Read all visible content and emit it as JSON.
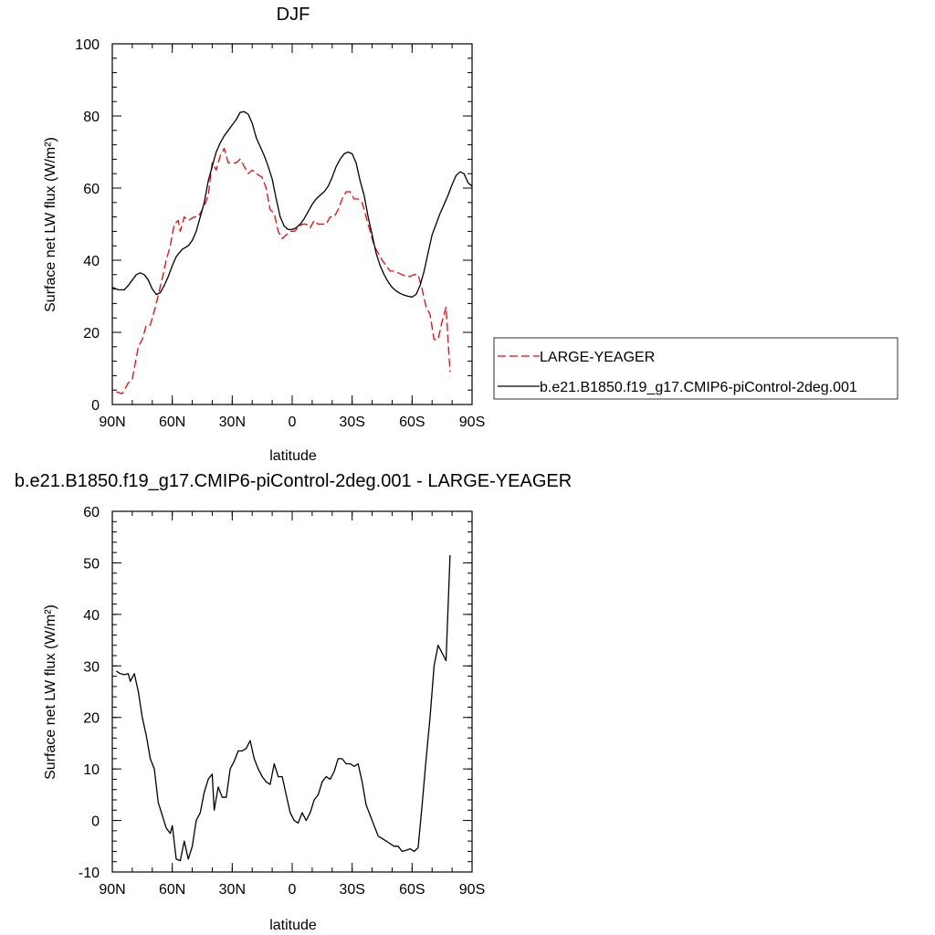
{
  "chart_data": [
    {
      "type": "line",
      "title": "DJF",
      "xlabel": "latitude",
      "ylabel": "Surface net LW flux (W/m²)",
      "xlim": [
        90,
        -90
      ],
      "ylim": [
        0,
        100
      ],
      "x_ticks": [
        {
          "v": 90,
          "label": "90N"
        },
        {
          "v": 60,
          "label": "60N"
        },
        {
          "v": 30,
          "label": "30N"
        },
        {
          "v": 0,
          "label": "0"
        },
        {
          "v": -30,
          "label": "30S"
        },
        {
          "v": -60,
          "label": "60S"
        },
        {
          "v": -90,
          "label": "90S"
        }
      ],
      "y_ticks": [
        0,
        20,
        40,
        60,
        80,
        100
      ],
      "legend": "right-bottom",
      "series": [
        {
          "name": "LARGE-YEAGER",
          "color": "#ff0000",
          "dash": "dashed",
          "points": [
            [
              88,
              3.5
            ],
            [
              85,
              3
            ],
            [
              82,
              6
            ],
            [
              80,
              7
            ],
            [
              77,
              16
            ],
            [
              75,
              18
            ],
            [
              73,
              22
            ],
            [
              71,
              22
            ],
            [
              68,
              28
            ],
            [
              65,
              35
            ],
            [
              63,
              40
            ],
            [
              61,
              44
            ],
            [
              59,
              50
            ],
            [
              57,
              51
            ],
            [
              56,
              48
            ],
            [
              54,
              52
            ],
            [
              52,
              51
            ],
            [
              49,
              52
            ],
            [
              47,
              52
            ],
            [
              44,
              55
            ],
            [
              42,
              58
            ],
            [
              40,
              67
            ],
            [
              38,
              65
            ],
            [
              36,
              69
            ],
            [
              34,
              71
            ],
            [
              32,
              67
            ],
            [
              30,
              67
            ],
            [
              28,
              67
            ],
            [
              26,
              68
            ],
            [
              24,
              66
            ],
            [
              22,
              64
            ],
            [
              20,
              65
            ],
            [
              18,
              64
            ],
            [
              15,
              63
            ],
            [
              13,
              60
            ],
            [
              11,
              54
            ],
            [
              9,
              53
            ],
            [
              7,
              48
            ],
            [
              5,
              46
            ],
            [
              3,
              47
            ],
            [
              1,
              48
            ],
            [
              -1,
              48
            ],
            [
              -3,
              49
            ],
            [
              -5,
              50
            ],
            [
              -7,
              50
            ],
            [
              -9,
              49
            ],
            [
              -11,
              51
            ],
            [
              -13,
              50
            ],
            [
              -15,
              50
            ],
            [
              -17,
              50
            ],
            [
              -19,
              52
            ],
            [
              -21,
              52
            ],
            [
              -23,
              54
            ],
            [
              -25,
              57
            ],
            [
              -27,
              59
            ],
            [
              -29,
              59
            ],
            [
              -31,
              57
            ],
            [
              -33,
              57
            ],
            [
              -35,
              56
            ],
            [
              -37,
              52
            ],
            [
              -39,
              48
            ],
            [
              -41,
              44
            ],
            [
              -43,
              42
            ],
            [
              -45,
              40
            ],
            [
              -47,
              38.5
            ],
            [
              -49,
              37
            ],
            [
              -51,
              37
            ],
            [
              -53,
              36.5
            ],
            [
              -55,
              36
            ],
            [
              -57,
              35.5
            ],
            [
              -59,
              35.5
            ],
            [
              -61,
              36
            ],
            [
              -63,
              36
            ],
            [
              -65,
              32
            ],
            [
              -67,
              27
            ],
            [
              -69,
              25
            ],
            [
              -71,
              18
            ],
            [
              -73,
              18
            ],
            [
              -75,
              23
            ],
            [
              -77,
              27
            ],
            [
              -79,
              9
            ]
          ]
        },
        {
          "name": "b.e21.B1850.f19_g17.CMIP6-piControl-2deg.001",
          "color": "#000000",
          "dash": "solid",
          "points": [
            [
              90,
              32.5
            ],
            [
              87,
              31.8
            ],
            [
              84,
              31.8
            ],
            [
              82,
              33
            ],
            [
              80,
              34.5
            ],
            [
              78,
              36
            ],
            [
              76,
              36.5
            ],
            [
              74,
              36
            ],
            [
              72,
              34.5
            ],
            [
              70,
              32
            ],
            [
              68,
              30.5
            ],
            [
              66,
              31
            ],
            [
              64,
              33
            ],
            [
              62,
              35.5
            ],
            [
              60,
              38.5
            ],
            [
              58,
              41
            ],
            [
              55,
              43
            ],
            [
              52,
              44
            ],
            [
              50,
              45.5
            ],
            [
              48,
              48
            ],
            [
              46,
              52
            ],
            [
              44,
              56
            ],
            [
              42,
              62
            ],
            [
              40,
              66
            ],
            [
              38,
              70
            ],
            [
              36,
              72.5
            ],
            [
              34,
              74.5
            ],
            [
              32,
              76
            ],
            [
              30,
              77.5
            ],
            [
              28,
              79
            ],
            [
              26,
              81
            ],
            [
              24,
              81.2
            ],
            [
              22,
              80.5
            ],
            [
              20,
              78
            ],
            [
              18,
              74
            ],
            [
              16,
              71.5
            ],
            [
              14,
              69
            ],
            [
              12,
              66
            ],
            [
              10,
              62.5
            ],
            [
              8,
              57
            ],
            [
              6,
              52
            ],
            [
              4,
              49.5
            ],
            [
              2,
              48.5
            ],
            [
              0,
              48.5
            ],
            [
              -2,
              49
            ],
            [
              -4,
              50
            ],
            [
              -6,
              51.5
            ],
            [
              -8,
              53.5
            ],
            [
              -10,
              55.5
            ],
            [
              -12,
              57
            ],
            [
              -14,
              58
            ],
            [
              -16,
              59
            ],
            [
              -18,
              60.5
            ],
            [
              -20,
              63
            ],
            [
              -22,
              66
            ],
            [
              -24,
              68
            ],
            [
              -26,
              69.5
            ],
            [
              -28,
              70
            ],
            [
              -30,
              69.5
            ],
            [
              -32,
              67
            ],
            [
              -34,
              62
            ],
            [
              -36,
              58
            ],
            [
              -38,
              52
            ],
            [
              -40,
              47
            ],
            [
              -42,
              42
            ],
            [
              -44,
              38.5
            ],
            [
              -46,
              36
            ],
            [
              -48,
              34
            ],
            [
              -50,
              32.5
            ],
            [
              -52,
              31.5
            ],
            [
              -54,
              30.8
            ],
            [
              -56,
              30.3
            ],
            [
              -58,
              30
            ],
            [
              -60,
              29.8
            ],
            [
              -62,
              30.5
            ],
            [
              -64,
              33
            ],
            [
              -66,
              37
            ],
            [
              -68,
              42
            ],
            [
              -70,
              47
            ],
            [
              -72,
              50
            ],
            [
              -74,
              53
            ],
            [
              -76,
              55.5
            ],
            [
              -78,
              58
            ],
            [
              -80,
              61
            ],
            [
              -82,
              63.5
            ],
            [
              -84,
              64.5
            ],
            [
              -86,
              64
            ],
            [
              -88,
              61.5
            ],
            [
              -90,
              60.5
            ]
          ]
        }
      ]
    },
    {
      "type": "line",
      "title": "b.e21.B1850.f19_g17.CMIP6-piControl-2deg.001 - LARGE-YEAGER",
      "xlabel": "latitude",
      "ylabel": "Surface net LW flux (W/m²)",
      "xlim": [
        90,
        -90
      ],
      "ylim": [
        -10,
        60
      ],
      "x_ticks": [
        {
          "v": 90,
          "label": "90N"
        },
        {
          "v": 60,
          "label": "60N"
        },
        {
          "v": 30,
          "label": "30N"
        },
        {
          "v": 0,
          "label": "0"
        },
        {
          "v": -30,
          "label": "30S"
        },
        {
          "v": -60,
          "label": "60S"
        },
        {
          "v": -90,
          "label": "90S"
        }
      ],
      "y_ticks": [
        -10,
        0,
        10,
        20,
        30,
        40,
        50,
        60
      ],
      "series": [
        {
          "name": "",
          "color": "#000000",
          "dash": "solid",
          "points": [
            [
              88,
              29
            ],
            [
              86,
              28.5
            ],
            [
              84,
              28.3
            ],
            [
              82,
              28.5
            ],
            [
              81,
              27
            ],
            [
              79,
              28.5
            ],
            [
              77,
              25
            ],
            [
              75,
              20
            ],
            [
              73,
              16.5
            ],
            [
              71,
              12
            ],
            [
              69,
              10
            ],
            [
              67,
              3.5
            ],
            [
              65,
              1
            ],
            [
              63,
              -1.5
            ],
            [
              61,
              -2.5
            ],
            [
              60,
              -1
            ],
            [
              58,
              -7.5
            ],
            [
              56,
              -7.8
            ],
            [
              54,
              -4
            ],
            [
              52,
              -7.5
            ],
            [
              50,
              -5
            ],
            [
              48,
              0
            ],
            [
              46,
              1.5
            ],
            [
              44,
              5.5
            ],
            [
              42,
              8
            ],
            [
              40,
              9
            ],
            [
              39,
              2
            ],
            [
              37,
              6.5
            ],
            [
              35,
              4.5
            ],
            [
              33,
              4.5
            ],
            [
              31,
              10
            ],
            [
              29,
              11.5
            ],
            [
              27,
              13.5
            ],
            [
              25,
              13.5
            ],
            [
              23,
              14
            ],
            [
              21,
              15.5
            ],
            [
              19,
              12
            ],
            [
              17,
              10
            ],
            [
              15,
              8.5
            ],
            [
              13,
              7.5
            ],
            [
              11,
              7
            ],
            [
              9,
              11
            ],
            [
              7,
              8.5
            ],
            [
              5,
              8.5
            ],
            [
              3,
              5
            ],
            [
              1,
              1.5
            ],
            [
              -1,
              0
            ],
            [
              -3,
              -0.5
            ],
            [
              -5,
              1.5
            ],
            [
              -7,
              0
            ],
            [
              -9,
              1.5
            ],
            [
              -11,
              4
            ],
            [
              -13,
              5
            ],
            [
              -15,
              7.5
            ],
            [
              -17,
              8.5
            ],
            [
              -19,
              8
            ],
            [
              -21,
              9.5
            ],
            [
              -23,
              12
            ],
            [
              -25,
              12
            ],
            [
              -27,
              11
            ],
            [
              -29,
              11
            ],
            [
              -31,
              10.5
            ],
            [
              -33,
              11
            ],
            [
              -35,
              7.5
            ],
            [
              -37,
              3
            ],
            [
              -39,
              1
            ],
            [
              -41,
              -1
            ],
            [
              -43,
              -3
            ],
            [
              -45,
              -3.5
            ],
            [
              -47,
              -4
            ],
            [
              -49,
              -4.5
            ],
            [
              -51,
              -5
            ],
            [
              -53,
              -5
            ],
            [
              -55,
              -6
            ],
            [
              -57,
              -5.8
            ],
            [
              -59,
              -5.5
            ],
            [
              -61,
              -6
            ],
            [
              -63,
              -5.3
            ],
            [
              -65,
              3
            ],
            [
              -67,
              12
            ],
            [
              -69,
              20
            ],
            [
              -71,
              30
            ],
            [
              -73,
              34
            ],
            [
              -75,
              32.5
            ],
            [
              -77,
              31
            ],
            [
              -79,
              51.5
            ]
          ]
        }
      ]
    }
  ]
}
